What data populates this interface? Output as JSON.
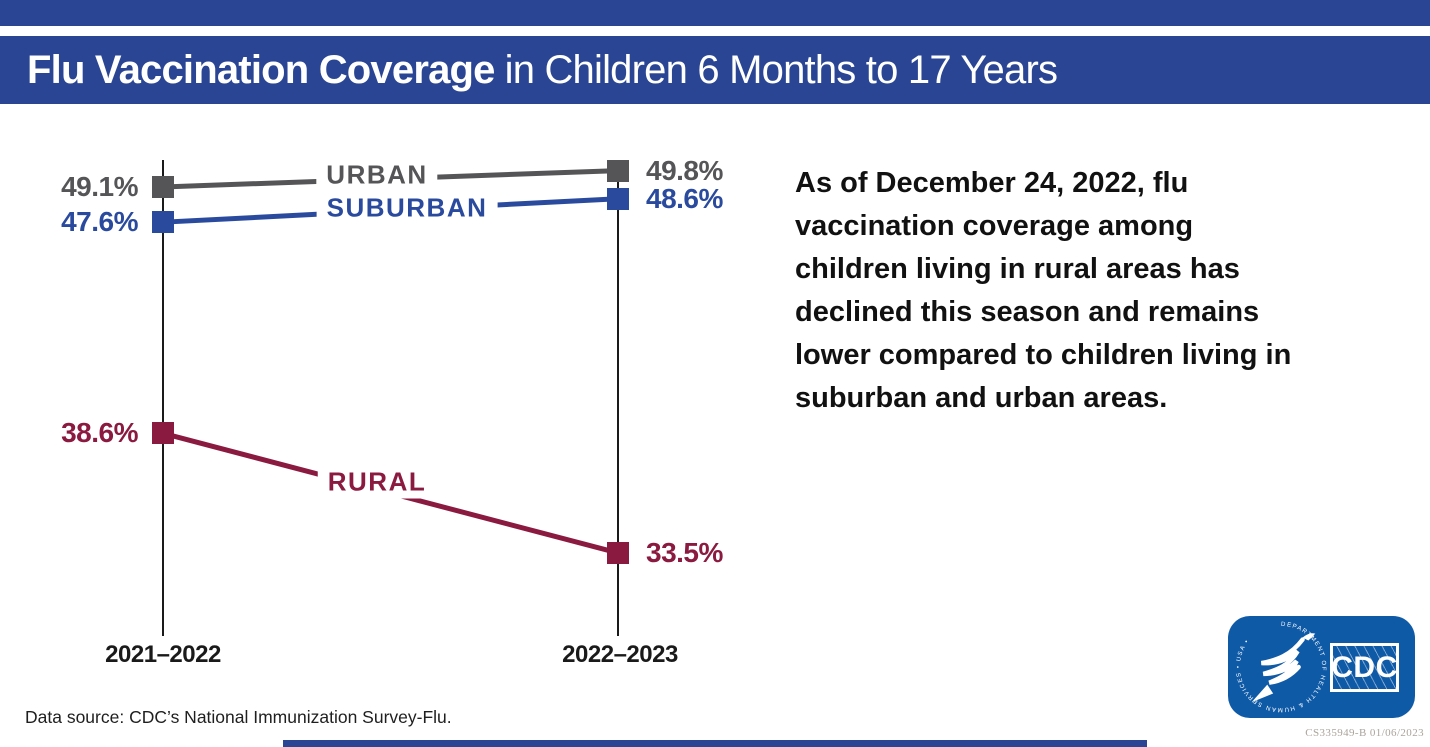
{
  "header": {
    "title_bold": "Flu Vaccination Coverage",
    "title_rest": "in Children 6 Months to 17 Years"
  },
  "chart_data": {
    "type": "line",
    "categories": [
      "2021–2022",
      "2022–2023"
    ],
    "series": [
      {
        "name": "URBAN",
        "values": [
          49.1,
          49.8
        ],
        "point_labels": [
          "49.1%",
          "49.8%"
        ],
        "color": "#555558"
      },
      {
        "name": "SUBURBAN",
        "values": [
          47.6,
          48.6
        ],
        "point_labels": [
          "47.6%",
          "48.6%"
        ],
        "color": "#2A4A9E"
      },
      {
        "name": "RURAL",
        "values": [
          38.6,
          33.5
        ],
        "point_labels": [
          "38.6%",
          "33.5%"
        ],
        "color": "#8B1A41"
      }
    ],
    "title": "Flu Vaccination Coverage in Children 6 Months to 17 Years",
    "ylim": [
      30,
      52
    ],
    "grid": false,
    "legend_position": "labels-on-lines",
    "marker": "square"
  },
  "callout": {
    "text": "As of December 24, 2022, flu vaccination coverage among children living in rural areas has declined this season and remains lower compared to children living in suburban and urban areas."
  },
  "footer": {
    "data_source": "Data source: CDC’s National Immunization Survey-Flu.",
    "document_id": "CS335949-B 01/06/2023"
  },
  "logo": {
    "cdc_label": "CDC",
    "ring_text": "DEPARTMENT OF HEALTH & HUMAN SERVICES • USA •"
  },
  "colors": {
    "band_blue": "#2A4593",
    "urban_gray": "#555558",
    "suburban_blue": "#2A4A9E",
    "rural_maroon": "#8B1A41",
    "logo_blue": "#0E5AA7",
    "axis_black": "#1A1A1A",
    "doc_id_gray": "#ABA49C"
  }
}
